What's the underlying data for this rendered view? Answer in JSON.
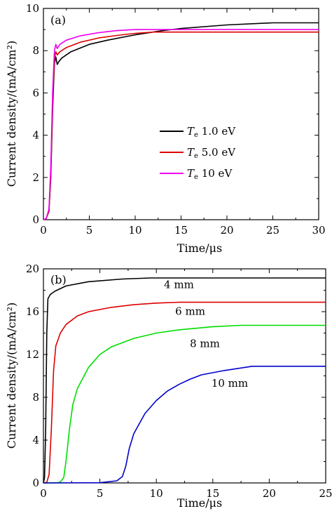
{
  "chart_data": [
    {
      "panel_label": "(a)",
      "type": "line",
      "xlabel": "Time/μs",
      "ylabel": "Current density/(mA/cm²)",
      "xlim": [
        0,
        30
      ],
      "ylim": [
        0,
        10
      ],
      "xticks": [
        "0",
        "5",
        "10",
        "15",
        "20",
        "25",
        "30"
      ],
      "yticks": [
        "0",
        "2",
        "4",
        "6",
        "8",
        "10"
      ],
      "legend_position": "center-right",
      "series": [
        {
          "name": "Te 1.0 eV",
          "legend_main": "T",
          "legend_sub": "e",
          "legend_rest": " 1.0 eV",
          "color": "#000000",
          "points": [
            [
              0,
              0
            ],
            [
              0.3,
              0.05
            ],
            [
              0.6,
              0.4
            ],
            [
              0.8,
              2.0
            ],
            [
              1.0,
              5.2
            ],
            [
              1.2,
              7.4
            ],
            [
              1.35,
              7.7
            ],
            [
              1.5,
              7.35
            ],
            [
              1.7,
              7.5
            ],
            [
              2,
              7.65
            ],
            [
              3,
              7.95
            ],
            [
              5,
              8.3
            ],
            [
              7,
              8.5
            ],
            [
              10,
              8.75
            ],
            [
              13,
              8.95
            ],
            [
              15,
              9.05
            ],
            [
              20,
              9.22
            ],
            [
              25,
              9.32
            ],
            [
              30,
              9.32
            ]
          ]
        },
        {
          "name": "Te 5.0 eV",
          "legend_main": "T",
          "legend_sub": "e",
          "legend_rest": " 5.0 eV",
          "color": "#dd0000",
          "points": [
            [
              0,
              0
            ],
            [
              0.3,
              0.05
            ],
            [
              0.6,
              0.4
            ],
            [
              0.8,
              2.2
            ],
            [
              1.0,
              5.6
            ],
            [
              1.2,
              7.6
            ],
            [
              1.35,
              7.95
            ],
            [
              1.5,
              7.8
            ],
            [
              1.8,
              7.95
            ],
            [
              2.5,
              8.15
            ],
            [
              4,
              8.4
            ],
            [
              6,
              8.6
            ],
            [
              8,
              8.72
            ],
            [
              10,
              8.82
            ],
            [
              12,
              8.88
            ],
            [
              30,
              8.88
            ]
          ]
        },
        {
          "name": "Te 10 eV",
          "legend_main": "T",
          "legend_sub": "e",
          "legend_rest": " 10 eV",
          "color": "#ee00ee",
          "points": [
            [
              0,
              0
            ],
            [
              0.3,
              0.05
            ],
            [
              0.6,
              0.5
            ],
            [
              0.8,
              2.5
            ],
            [
              1.0,
              6.0
            ],
            [
              1.2,
              8.0
            ],
            [
              1.35,
              8.3
            ],
            [
              1.5,
              8.1
            ],
            [
              1.8,
              8.3
            ],
            [
              2.5,
              8.5
            ],
            [
              4,
              8.7
            ],
            [
              6,
              8.85
            ],
            [
              8,
              8.95
            ],
            [
              10,
              9.0
            ],
            [
              30,
              9.0
            ]
          ]
        }
      ]
    },
    {
      "panel_label": "(b)",
      "type": "line",
      "xlabel": "Time/μs",
      "ylabel": "Current density/(mA/cm²)",
      "xlim": [
        0,
        25
      ],
      "ylim": [
        0,
        20
      ],
      "xticks": [
        "0",
        "5",
        "10",
        "15",
        "20",
        "25"
      ],
      "yticks": [
        "0",
        "4",
        "8",
        "12",
        "16",
        "20"
      ],
      "series": [
        {
          "name": "4 mm",
          "color": "#000000",
          "label_at": [
            12,
            18.2
          ],
          "points": [
            [
              0,
              0
            ],
            [
              0.1,
              0.5
            ],
            [
              0.2,
              5
            ],
            [
              0.3,
              14
            ],
            [
              0.4,
              17.2
            ],
            [
              0.6,
              17.6
            ],
            [
              1,
              17.9
            ],
            [
              2,
              18.4
            ],
            [
              4,
              18.8
            ],
            [
              7,
              19.05
            ],
            [
              9.5,
              19.15
            ],
            [
              25,
              19.15
            ]
          ]
        },
        {
          "name": "6 mm",
          "color": "#dd0000",
          "label_at": [
            13,
            15.7
          ],
          "points": [
            [
              0,
              0
            ],
            [
              0.3,
              0.05
            ],
            [
              0.5,
              0.8
            ],
            [
              0.7,
              5
            ],
            [
              0.9,
              10.5
            ],
            [
              1.1,
              12.8
            ],
            [
              1.5,
              14
            ],
            [
              2,
              14.8
            ],
            [
              3,
              15.6
            ],
            [
              4,
              16
            ],
            [
              6,
              16.4
            ],
            [
              8,
              16.65
            ],
            [
              10,
              16.8
            ],
            [
              12,
              16.88
            ],
            [
              25,
              16.88
            ]
          ]
        },
        {
          "name": "8 mm",
          "color": "#00dd00",
          "label_at": [
            14.3,
            12.7
          ],
          "points": [
            [
              0,
              0
            ],
            [
              1.2,
              0
            ],
            [
              1.5,
              0.1
            ],
            [
              1.8,
              0.5
            ],
            [
              2.0,
              2
            ],
            [
              2.3,
              5
            ],
            [
              2.6,
              7.3
            ],
            [
              3,
              8.8
            ],
            [
              4,
              10.8
            ],
            [
              5,
              12
            ],
            [
              6,
              12.7
            ],
            [
              8,
              13.5
            ],
            [
              10,
              14
            ],
            [
              12,
              14.3
            ],
            [
              15,
              14.6
            ],
            [
              17.5,
              14.72
            ],
            [
              25,
              14.72
            ]
          ]
        },
        {
          "name": "10 mm",
          "color": "#0000cc",
          "label_at": [
            16.5,
            9.0
          ],
          "points": [
            [
              0,
              0
            ],
            [
              5,
              0.02
            ],
            [
              6.5,
              0.2
            ],
            [
              7,
              0.6
            ],
            [
              7.3,
              1.6
            ],
            [
              7.6,
              3.2
            ],
            [
              8,
              4.6
            ],
            [
              9,
              6.5
            ],
            [
              10,
              7.7
            ],
            [
              11,
              8.6
            ],
            [
              12,
              9.2
            ],
            [
              13,
              9.7
            ],
            [
              14,
              10.1
            ],
            [
              16,
              10.5
            ],
            [
              18.5,
              10.9
            ],
            [
              25,
              10.9
            ]
          ]
        }
      ]
    }
  ]
}
